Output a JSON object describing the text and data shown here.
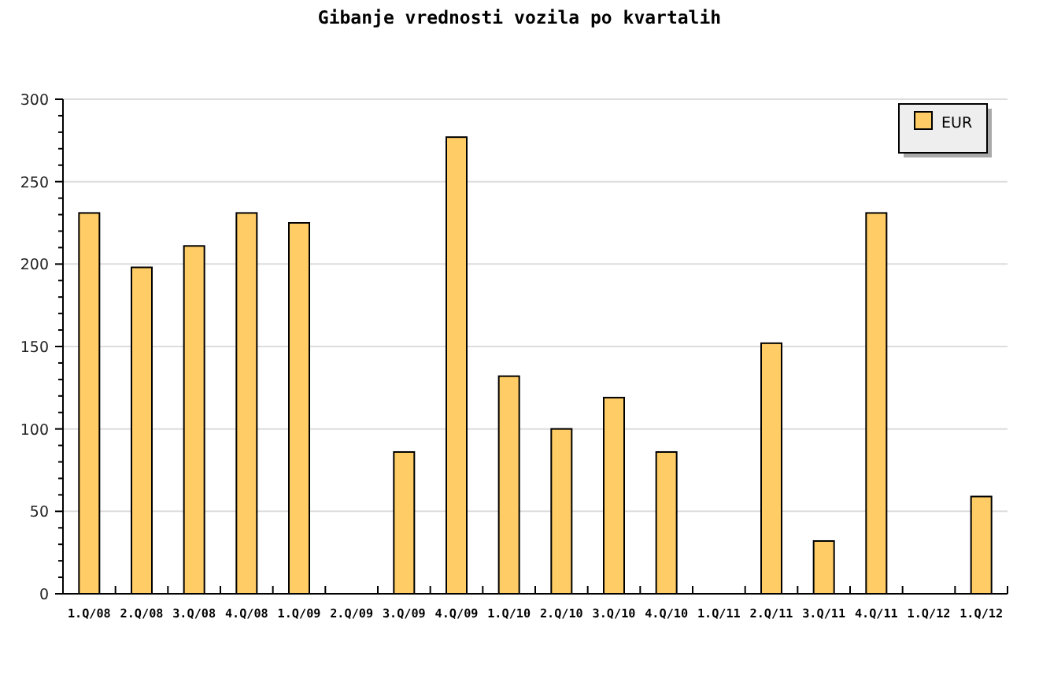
{
  "chart_data": {
    "type": "bar",
    "title": "Gibanje vrednosti vozila po kvartalih",
    "categories": [
      "1.Q/08",
      "2.Q/08",
      "3.Q/08",
      "4.Q/08",
      "1.Q/09",
      "2.Q/09",
      "3.Q/09",
      "4.Q/09",
      "1.Q/10",
      "2.Q/10",
      "3.Q/10",
      "4.Q/10",
      "1.Q/11",
      "2.Q/11",
      "3.Q/11",
      "4.Q/11",
      "1.Q/12",
      "1.Q/12"
    ],
    "series": [
      {
        "name": "EUR",
        "color": "#ffcc66",
        "values": [
          231,
          198,
          211,
          231,
          225,
          null,
          86,
          277,
          132,
          100,
          119,
          86,
          null,
          152,
          32,
          231,
          null,
          59
        ]
      }
    ],
    "ylim": [
      0,
      300
    ],
    "yticks": [
      0,
      {
        "value": 10,
        "label": null
      },
      {
        "value": 20,
        "label": null
      },
      {
        "value": 30,
        "label": null
      },
      {
        "value": 40,
        "label": null
      },
      50,
      {
        "value": 60,
        "label": null
      },
      {
        "value": 70,
        "label": null
      },
      {
        "value": 80,
        "label": null
      },
      {
        "value": 90,
        "label": null
      },
      100,
      {
        "value": 110,
        "label": null
      },
      {
        "value": 120,
        "label": null
      },
      {
        "value": 130,
        "label": null
      },
      {
        "value": 140,
        "label": null
      },
      150,
      {
        "value": 160,
        "label": null
      },
      {
        "value": 170,
        "label": null
      },
      {
        "value": 180,
        "label": null
      },
      {
        "value": 190,
        "label": null
      },
      200,
      {
        "value": 210,
        "label": null
      },
      {
        "value": 220,
        "label": null
      },
      {
        "value": 230,
        "label": null
      },
      {
        "value": 240,
        "label": null
      },
      250,
      {
        "value": 260,
        "label": null
      },
      {
        "value": 270,
        "label": null
      },
      {
        "value": 280,
        "label": null
      },
      {
        "value": 290,
        "label": null
      },
      300
    ],
    "grid": "y",
    "legend": "top right"
  }
}
